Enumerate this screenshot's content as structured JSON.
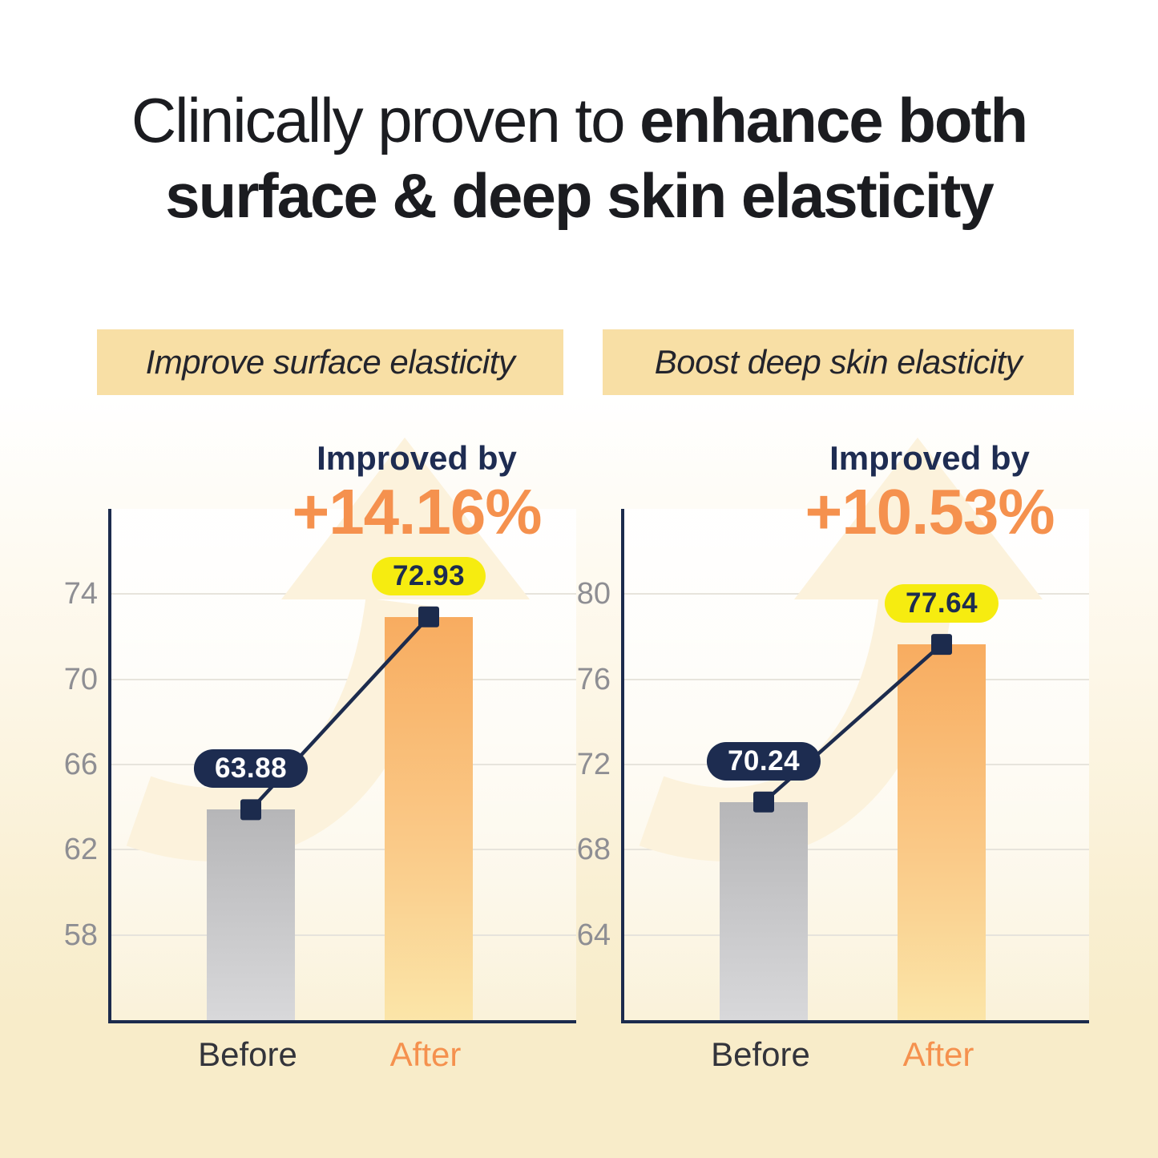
{
  "header": {
    "title_regular": "Clinically proven to ",
    "title_bold": "enhance both",
    "title_line2": "surface & deep skin elasticity"
  },
  "chart_data": [
    {
      "type": "bar",
      "title": "Improve surface elasticity",
      "improved_by_label": "Improved by",
      "improvement": "+14.16%",
      "categories": [
        "Before",
        "After"
      ],
      "values": [
        63.88,
        72.93
      ],
      "value_labels": [
        "63.88",
        "72.93"
      ],
      "yticks": [
        58,
        62,
        66,
        70,
        74
      ],
      "ylim": [
        54,
        78
      ],
      "xlabel": "",
      "ylabel": "",
      "grid": true,
      "legend": "none"
    },
    {
      "type": "bar",
      "title": "Boost deep skin elasticity",
      "improved_by_label": "Improved by",
      "improvement": "+10.53%",
      "categories": [
        "Before",
        "After"
      ],
      "values": [
        70.24,
        77.64
      ],
      "value_labels": [
        "70.24",
        "77.64"
      ],
      "yticks": [
        64,
        68,
        72,
        76,
        80
      ],
      "ylim": [
        60,
        84
      ],
      "xlabel": "",
      "ylabel": "",
      "grid": true,
      "legend": "none"
    }
  ],
  "colors": {
    "accent_orange": "#f5914e",
    "navy": "#1c2b4d",
    "highlight_yellow": "#f6ec10",
    "badge_background": "#f8dfa5",
    "background_top": "#ffffff",
    "background_bottom": "#f8ecc9",
    "bar_before_top": "#b6b6b8",
    "bar_before_bottom": "#d8d8da",
    "bar_after_top": "#f8ac60",
    "bar_after_bottom": "#fbe5a8",
    "arrow_watermark": "#fcf2dc",
    "gridline": "#e7e4dc",
    "tick_label": "#8e8e93",
    "category_before": "#33343b",
    "title_text": "#1b1c20"
  }
}
